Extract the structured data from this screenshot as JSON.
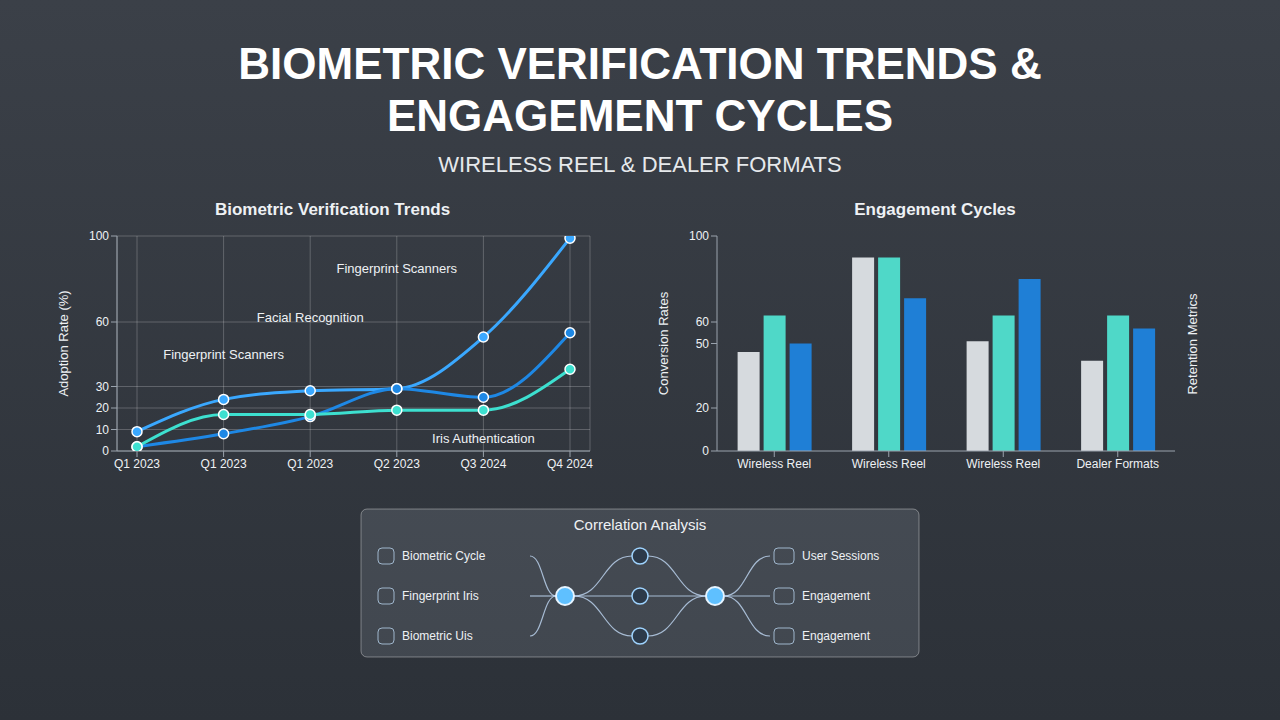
{
  "title": "BIOMETRIC VERIFICATION TRENDS & ENGAGEMENT CYCLES",
  "subtitle": "WIRELESS REEL & DEALER FORMATS",
  "chart_data": [
    {
      "type": "line",
      "title": "Biometric Verification Trends",
      "ylabel": "Adoption Rate (%)",
      "categories": [
        "Q1 2023",
        "Q1 2023",
        "Q1 2023",
        "Q2 2023",
        "Q3 2024",
        "Q4 2024"
      ],
      "series": [
        {
          "name": "Fingerprint Scanners",
          "color": "#3aa8ff",
          "marker": "circle",
          "values": [
            9,
            24,
            28,
            29,
            53,
            99
          ]
        },
        {
          "name": "Facial Recognition",
          "color": "#1e88e5",
          "marker": "circle",
          "values": [
            2,
            8,
            16,
            29,
            25,
            55
          ]
        },
        {
          "name": "Iris Authentication",
          "color": "#3de0d0",
          "marker": "circle",
          "values": [
            2,
            17,
            17,
            19,
            19,
            38
          ]
        }
      ],
      "ylim": [
        0,
        100
      ],
      "yticks": [
        0,
        10,
        20,
        30,
        60,
        100
      ],
      "grid": true
    },
    {
      "type": "bar",
      "title": "Engagement Cycles",
      "ylabel": "Conversion Rates",
      "y2label": "Retention Metrics",
      "categories": [
        "Wireless Reel",
        "Wireless Reel",
        "Wireless Reel",
        "Dealer Formats"
      ],
      "series": [
        {
          "color": "#d6dade",
          "values": [
            46,
            90,
            51,
            42
          ]
        },
        {
          "color": "#4fd8c8",
          "values": [
            63,
            90,
            63,
            63
          ]
        },
        {
          "color": "#1f7fd6",
          "values": [
            50,
            71,
            80,
            57
          ]
        }
      ],
      "ylim": [
        0,
        100
      ],
      "yticks": [
        0,
        20,
        50,
        60,
        100
      ],
      "grid": false
    }
  ],
  "correlation_analysis": {
    "title": "Correlation Analysis",
    "inputs": [
      "Biometric Cycle",
      "Fingerprint Iris",
      "Biometric Uis"
    ],
    "outputs": [
      "User Sessions",
      "Engagement",
      "Engagement"
    ]
  }
}
